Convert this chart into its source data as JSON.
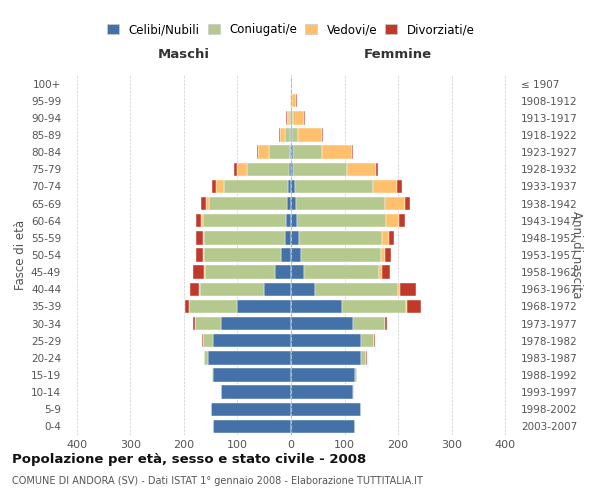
{
  "age_groups": [
    "0-4",
    "5-9",
    "10-14",
    "15-19",
    "20-24",
    "25-29",
    "30-34",
    "35-39",
    "40-44",
    "45-49",
    "50-54",
    "55-59",
    "60-64",
    "65-69",
    "70-74",
    "75-79",
    "80-84",
    "85-89",
    "90-94",
    "95-99",
    "100+"
  ],
  "birth_years": [
    "2003-2007",
    "1998-2002",
    "1993-1997",
    "1988-1992",
    "1983-1987",
    "1978-1982",
    "1973-1977",
    "1968-1972",
    "1963-1967",
    "1958-1962",
    "1953-1957",
    "1948-1952",
    "1943-1947",
    "1938-1942",
    "1933-1937",
    "1928-1932",
    "1923-1927",
    "1918-1922",
    "1913-1917",
    "1908-1912",
    "≤ 1907"
  ],
  "males": {
    "celibi": [
      145,
      150,
      130,
      145,
      155,
      145,
      130,
      100,
      50,
      30,
      18,
      12,
      10,
      8,
      5,
      3,
      2,
      1,
      0,
      0,
      0
    ],
    "coniugati": [
      0,
      0,
      1,
      3,
      8,
      20,
      50,
      90,
      120,
      130,
      145,
      150,
      155,
      145,
      120,
      80,
      40,
      10,
      3,
      1,
      0
    ],
    "vedovi": [
      0,
      0,
      0,
      0,
      0,
      0,
      0,
      0,
      1,
      2,
      2,
      3,
      3,
      5,
      15,
      18,
      20,
      10,
      5,
      1,
      0
    ],
    "divorziati": [
      0,
      0,
      0,
      0,
      0,
      1,
      2,
      8,
      18,
      20,
      12,
      12,
      10,
      10,
      8,
      5,
      2,
      2,
      1,
      0,
      0
    ]
  },
  "females": {
    "nubili": [
      120,
      130,
      115,
      120,
      130,
      130,
      115,
      95,
      45,
      25,
      18,
      15,
      12,
      10,
      8,
      4,
      3,
      1,
      1,
      0,
      0
    ],
    "coniugate": [
      0,
      0,
      2,
      4,
      10,
      25,
      60,
      120,
      155,
      140,
      150,
      155,
      165,
      165,
      145,
      100,
      55,
      12,
      3,
      2,
      0
    ],
    "vedove": [
      0,
      0,
      0,
      0,
      0,
      0,
      0,
      2,
      3,
      5,
      8,
      12,
      25,
      38,
      45,
      55,
      55,
      45,
      20,
      8,
      1
    ],
    "divorziate": [
      0,
      0,
      0,
      0,
      1,
      2,
      5,
      25,
      30,
      15,
      10,
      10,
      10,
      10,
      10,
      3,
      2,
      2,
      2,
      2,
      0
    ]
  },
  "colors": {
    "celibi": "#4472a8",
    "coniugati": "#b5c98e",
    "vedovi": "#ffc06e",
    "divorziati": "#c0392b"
  },
  "xlim": 420,
  "title": "Popolazione per età, sesso e stato civile - 2008",
  "subtitle": "COMUNE DI ANDORA (SV) - Dati ISTAT 1° gennaio 2008 - Elaborazione TUTTITALIA.IT",
  "ylabel_left": "Fasce di età",
  "ylabel_right": "Anni di nascita",
  "xlabel_left": "Maschi",
  "xlabel_right": "Femmine",
  "legend_labels": [
    "Celibi/Nubili",
    "Coniugati/e",
    "Vedovi/e",
    "Divorziati/e"
  ]
}
